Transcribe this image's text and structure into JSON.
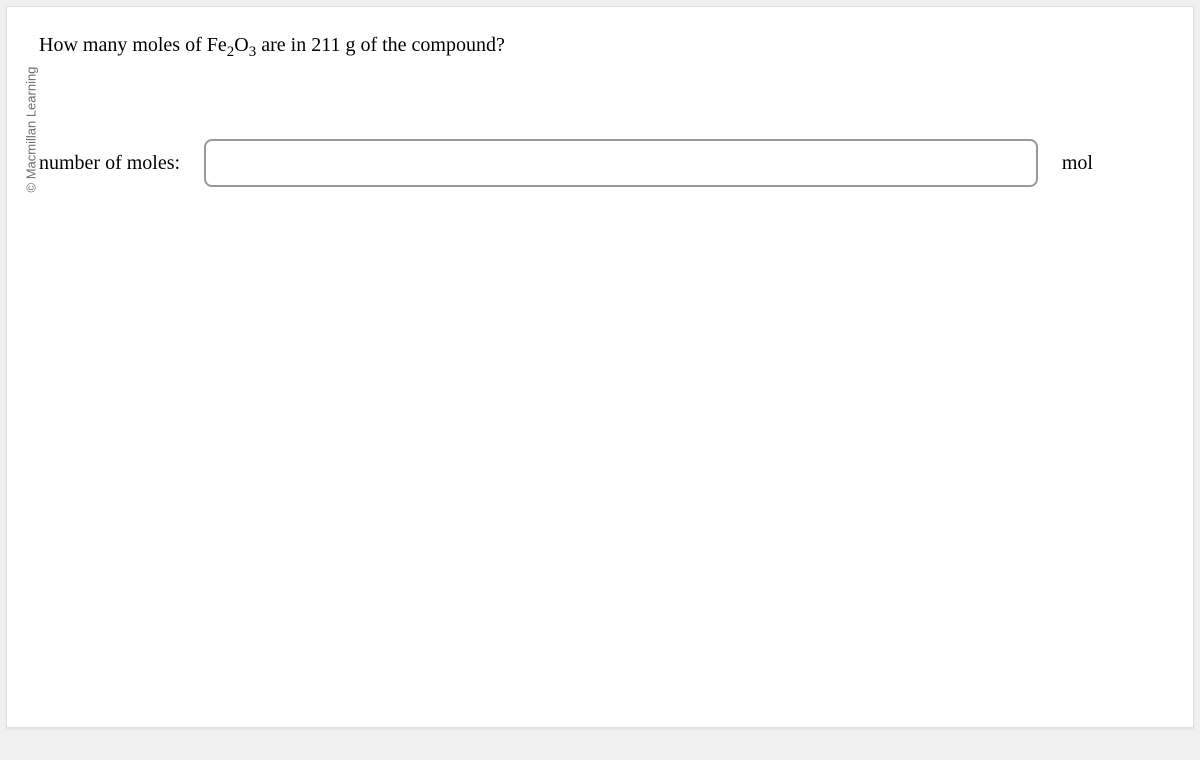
{
  "copyright": "© Macmillan Learning",
  "question": {
    "prefix": "How many moles of Fe",
    "sub1": "2",
    "mid": "O",
    "sub2": "3",
    "suffix": " are in 211 g of the compound?"
  },
  "answer": {
    "label": "number of moles:",
    "value": "",
    "unit": "mol"
  },
  "styling": {
    "background_color": "#f0f0f0",
    "panel_background": "#ffffff",
    "text_color": "#000000",
    "copyright_color": "#707070",
    "input_border_color": "#999999",
    "input_border_radius": 8,
    "question_fontsize": 20,
    "label_fontsize": 20,
    "copyright_fontsize": 13,
    "font_family": "Georgia, Times New Roman, serif"
  }
}
